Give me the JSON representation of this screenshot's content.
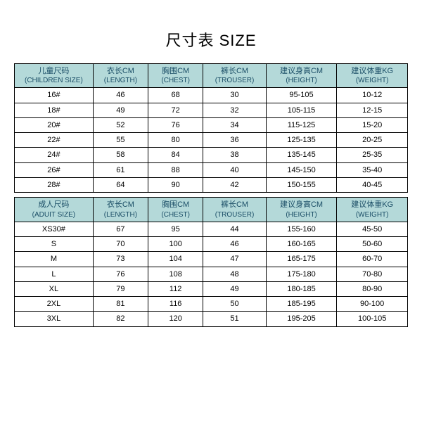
{
  "title": "尺寸表 SIZE",
  "colors": {
    "header_bg": "#b4d9d9",
    "header_text": "#1a4d66",
    "border": "#000000",
    "cell_bg": "#ffffff",
    "cell_text": "#000000"
  },
  "col_widths_pct": [
    20,
    14,
    14,
    16,
    18,
    18
  ],
  "children": {
    "headers": [
      {
        "cn": "儿童尺码",
        "en": "(CHILDREN SIZE)"
      },
      {
        "cn": "衣长CM",
        "en": "(LENGTH)"
      },
      {
        "cn": "胸围CM",
        "en": "(CHEST)"
      },
      {
        "cn": "裤长CM",
        "en": "(TROUSER)"
      },
      {
        "cn": "建议身高CM",
        "en": "(HEIGHT)"
      },
      {
        "cn": "建议体重KG",
        "en": "(WEIGHT)"
      }
    ],
    "rows": [
      [
        "16#",
        "46",
        "68",
        "30",
        "95-105",
        "10-12"
      ],
      [
        "18#",
        "49",
        "72",
        "32",
        "105-115",
        "12-15"
      ],
      [
        "20#",
        "52",
        "76",
        "34",
        "115-125",
        "15-20"
      ],
      [
        "22#",
        "55",
        "80",
        "36",
        "125-135",
        "20-25"
      ],
      [
        "24#",
        "58",
        "84",
        "38",
        "135-145",
        "25-35"
      ],
      [
        "26#",
        "61",
        "88",
        "40",
        "145-150",
        "35-40"
      ],
      [
        "28#",
        "64",
        "90",
        "42",
        "150-155",
        "40-45"
      ]
    ]
  },
  "adult": {
    "headers": [
      {
        "cn": "成人尺码",
        "en": "(ADUIT SIZE)"
      },
      {
        "cn": "衣长CM",
        "en": "(LENGTH)"
      },
      {
        "cn": "胸围CM",
        "en": "(CHEST)"
      },
      {
        "cn": "裤长CM",
        "en": "(TROUSER)"
      },
      {
        "cn": "建议身高CM",
        "en": "(HEIGHT)"
      },
      {
        "cn": "建议体重KG",
        "en": "(WEIGHT)"
      }
    ],
    "rows": [
      [
        "XS30#",
        "67",
        "95",
        "44",
        "155-160",
        "45-50"
      ],
      [
        "S",
        "70",
        "100",
        "46",
        "160-165",
        "50-60"
      ],
      [
        "M",
        "73",
        "104",
        "47",
        "165-175",
        "60-70"
      ],
      [
        "L",
        "76",
        "108",
        "48",
        "175-180",
        "70-80"
      ],
      [
        "XL",
        "79",
        "112",
        "49",
        "180-185",
        "80-90"
      ],
      [
        "2XL",
        "81",
        "116",
        "50",
        "185-195",
        "90-100"
      ],
      [
        "3XL",
        "82",
        "120",
        "51",
        "195-205",
        "100-105"
      ]
    ]
  }
}
